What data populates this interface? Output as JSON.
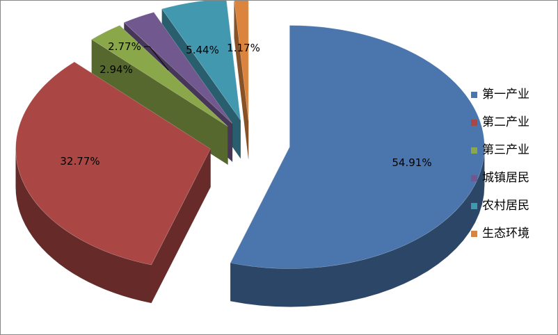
{
  "chart_data": {
    "type": "pie",
    "title": "",
    "categories": [
      "第一产业",
      "第二产业",
      "第三产业",
      "城镇居民",
      "农村居民",
      "生态环境"
    ],
    "values": [
      54.91,
      32.77,
      2.94,
      2.77,
      5.44,
      1.17
    ],
    "labels": [
      "54.91%",
      "32.77%",
      "2.94%",
      "2.77%",
      "5.44%",
      "1.17%"
    ],
    "colors": [
      "#4a75ad",
      "#aa4643",
      "#8aa749",
      "#71588f",
      "#4198af",
      "#db843d"
    ],
    "legend_position": "right",
    "style": "3d-exploded"
  }
}
